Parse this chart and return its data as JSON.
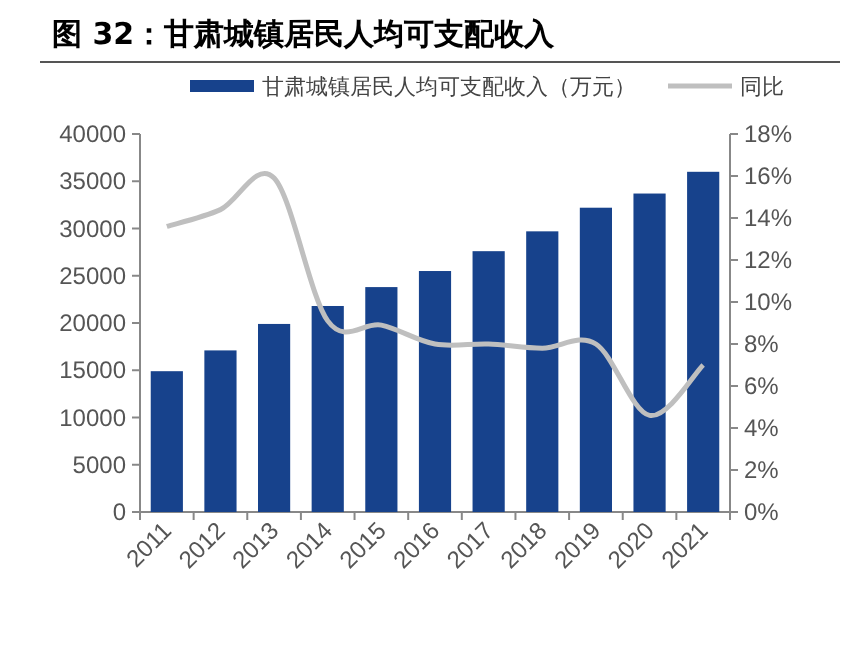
{
  "chart_data": {
    "type": "bar",
    "title": "图 32：甘肃城镇居民人均可支配收入",
    "categories": [
      "2011",
      "2012",
      "2013",
      "2014",
      "2015",
      "2016",
      "2017",
      "2018",
      "2019",
      "2020",
      "2021"
    ],
    "series": [
      {
        "name": "甘肃城镇居民人均可支配收入（万元）",
        "color": "#17428c",
        "values": [
          14900,
          17100,
          19900,
          21800,
          23800,
          25500,
          27600,
          29700,
          32200,
          33700,
          36000
        ]
      },
      {
        "name": "同比",
        "type": "line",
        "axis": "y2",
        "color": "#bfbfbf",
        "values": [
          13.6,
          14.4,
          15.9,
          9.1,
          8.9,
          8.0,
          8.0,
          7.8,
          8.0,
          4.6,
          7.0
        ]
      }
    ],
    "ylim": [
      0,
      40000
    ],
    "yticks": [
      0,
      5000,
      10000,
      15000,
      20000,
      25000,
      30000,
      35000,
      40000
    ],
    "y2lim": [
      0,
      18
    ],
    "y2ticks": [
      {
        "value": 0,
        "label": "0%"
      },
      {
        "value": 2,
        "label": "2%"
      },
      {
        "value": 4,
        "label": "4%"
      },
      {
        "value": 6,
        "label": "6%"
      },
      {
        "value": 8,
        "label": "8%"
      },
      {
        "value": 10,
        "label": "10%"
      },
      {
        "value": 12,
        "label": "12%"
      },
      {
        "value": 14,
        "label": "14%"
      },
      {
        "value": 16,
        "label": "16%"
      },
      {
        "value": 18,
        "label": "18%"
      }
    ],
    "legend": "top",
    "grid": false
  }
}
